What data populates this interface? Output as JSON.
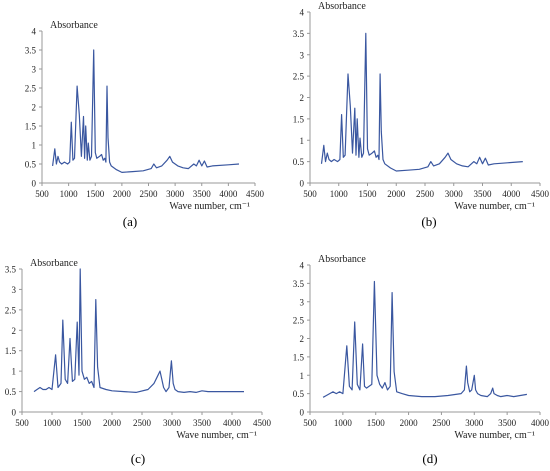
{
  "figure": {
    "line_color": "#3a57a0",
    "axis_color": "#999999"
  },
  "chart_data": [
    {
      "type": "line",
      "caption": "(a)",
      "ylabel": "Absorbance",
      "xlabel": "Wave number, cm⁻¹",
      "xlim": [
        500,
        4500
      ],
      "ylim": [
        0,
        4
      ],
      "xticks": [
        500,
        1000,
        1500,
        2000,
        2500,
        3000,
        3500,
        4000,
        4500
      ],
      "yticks": [
        0,
        0.5,
        1,
        1.5,
        2,
        2.5,
        3,
        3.5,
        4
      ],
      "ytick_labels": [
        "0",
        "0.5",
        "1",
        "1.5",
        "2",
        "2.5",
        "3",
        "3.5",
        "4"
      ],
      "grid": false,
      "series": [
        {
          "x": [
            700,
            740,
            770,
            800,
            830,
            870,
            920,
            980,
            1020,
            1050,
            1080,
            1110,
            1160,
            1200,
            1240,
            1280,
            1300,
            1320,
            1350,
            1370,
            1400,
            1430,
            1470,
            1500,
            1530,
            1580,
            1620,
            1650,
            1680,
            1700,
            1720,
            1740,
            1770,
            1800,
            1900,
            2000,
            2200,
            2400,
            2550,
            2600,
            2650,
            2750,
            2850,
            2900,
            2950,
            3050,
            3150,
            3250,
            3350,
            3400,
            3450,
            3500,
            3550,
            3600,
            3700,
            4000,
            4200
          ],
          "y": [
            0.45,
            0.9,
            0.5,
            0.7,
            0.55,
            0.5,
            0.55,
            0.5,
            0.55,
            1.6,
            0.6,
            0.65,
            2.55,
            1.8,
            0.7,
            1.75,
            0.65,
            1.5,
            0.6,
            1.05,
            0.6,
            0.7,
            3.5,
            0.8,
            0.65,
            0.7,
            0.75,
            0.6,
            0.65,
            0.55,
            2.55,
            1.2,
            0.55,
            0.45,
            0.35,
            0.28,
            0.3,
            0.32,
            0.38,
            0.5,
            0.4,
            0.45,
            0.6,
            0.7,
            0.55,
            0.45,
            0.4,
            0.38,
            0.5,
            0.45,
            0.6,
            0.45,
            0.58,
            0.42,
            0.45,
            0.48,
            0.5
          ]
        }
      ]
    },
    {
      "type": "line",
      "caption": "(b)",
      "ylabel": "Absorbance",
      "xlabel": "Wave number, cm⁻¹",
      "xlim": [
        500,
        4500
      ],
      "ylim": [
        0,
        4
      ],
      "xticks": [
        500,
        1000,
        1500,
        2000,
        2500,
        3000,
        3500,
        4000,
        4500
      ],
      "yticks": [
        0,
        0.5,
        1,
        1.5,
        2,
        2.5,
        3,
        3.5,
        4
      ],
      "ytick_labels": [
        "0",
        "0.5",
        "1",
        "1.5",
        "2",
        "2.5",
        "3",
        "3.5",
        "4"
      ],
      "grid": false,
      "series": [
        {
          "x": [
            700,
            740,
            770,
            800,
            830,
            870,
            920,
            980,
            1020,
            1050,
            1080,
            1110,
            1160,
            1200,
            1240,
            1280,
            1300,
            1320,
            1350,
            1370,
            1400,
            1430,
            1470,
            1500,
            1530,
            1580,
            1620,
            1650,
            1680,
            1700,
            1720,
            1740,
            1770,
            1800,
            1900,
            2000,
            2200,
            2400,
            2550,
            2600,
            2650,
            2750,
            2850,
            2900,
            2950,
            3050,
            3150,
            3250,
            3350,
            3400,
            3450,
            3500,
            3550,
            3600,
            3700,
            4000,
            4200
          ],
          "y": [
            0.45,
            0.88,
            0.5,
            0.7,
            0.55,
            0.5,
            0.55,
            0.5,
            0.55,
            1.6,
            0.6,
            0.65,
            2.55,
            1.8,
            0.7,
            1.75,
            0.65,
            1.5,
            0.6,
            1.05,
            0.6,
            0.7,
            3.5,
            0.8,
            0.65,
            0.7,
            0.75,
            0.6,
            0.65,
            0.55,
            2.55,
            1.2,
            0.55,
            0.45,
            0.35,
            0.28,
            0.3,
            0.32,
            0.38,
            0.5,
            0.4,
            0.45,
            0.6,
            0.7,
            0.55,
            0.45,
            0.4,
            0.38,
            0.5,
            0.45,
            0.6,
            0.45,
            0.58,
            0.42,
            0.45,
            0.48,
            0.5
          ]
        }
      ]
    },
    {
      "type": "line",
      "caption": "(c)",
      "ylabel": "Absorbance",
      "xlabel": "Wave number, cm⁻¹",
      "xlim": [
        500,
        4500
      ],
      "ylim": [
        0,
        3.5
      ],
      "xticks": [
        500,
        1000,
        1500,
        2000,
        2500,
        3000,
        3500,
        4000,
        4500
      ],
      "yticks": [
        0,
        0.5,
        1,
        1.5,
        2,
        2.5,
        3,
        3.5
      ],
      "ytick_labels": [
        "0",
        "0.5",
        "1",
        "1.5",
        "2",
        "2.5",
        "3",
        "3.5"
      ],
      "grid": false,
      "series": [
        {
          "x": [
            700,
            750,
            800,
            850,
            900,
            950,
            1000,
            1060,
            1100,
            1150,
            1180,
            1220,
            1260,
            1300,
            1340,
            1380,
            1420,
            1450,
            1470,
            1500,
            1540,
            1580,
            1620,
            1660,
            1700,
            1730,
            1760,
            1800,
            1900,
            2000,
            2200,
            2400,
            2600,
            2700,
            2750,
            2800,
            2830,
            2860,
            2900,
            2950,
            2990,
            3020,
            3050,
            3100,
            3200,
            3300,
            3400,
            3500,
            3600,
            3700,
            4000,
            4200
          ],
          "y": [
            0.5,
            0.55,
            0.6,
            0.55,
            0.55,
            0.6,
            0.55,
            1.4,
            0.6,
            0.7,
            2.25,
            0.8,
            0.7,
            1.8,
            0.75,
            0.8,
            2.2,
            0.9,
            3.5,
            1.0,
            0.8,
            0.85,
            0.7,
            0.75,
            0.6,
            2.75,
            1.1,
            0.6,
            0.55,
            0.52,
            0.5,
            0.48,
            0.55,
            0.7,
            0.85,
            1.0,
            0.8,
            0.6,
            0.5,
            0.6,
            1.25,
            0.7,
            0.55,
            0.5,
            0.48,
            0.5,
            0.48,
            0.52,
            0.5,
            0.5,
            0.5,
            0.5
          ]
        }
      ]
    },
    {
      "type": "line",
      "caption": "(d)",
      "ylabel": "Absorbance",
      "xlabel": "Wave number, cm⁻¹",
      "xlim": [
        500,
        4000
      ],
      "ylim": [
        0,
        4
      ],
      "xticks": [
        500,
        1000,
        1500,
        2000,
        2500,
        3000,
        3500,
        4000
      ],
      "yticks": [
        0,
        0.5,
        1,
        1.5,
        2,
        2.5,
        3,
        3.5,
        4
      ],
      "ytick_labels": [
        "0",
        "0.5",
        "1",
        "1.5",
        "2",
        "2.5",
        "3",
        "3.5",
        "4"
      ],
      "grid": false,
      "series": [
        {
          "x": [
            700,
            750,
            800,
            850,
            900,
            950,
            1000,
            1060,
            1100,
            1140,
            1180,
            1220,
            1260,
            1300,
            1330,
            1360,
            1400,
            1440,
            1480,
            1520,
            1560,
            1600,
            1640,
            1680,
            1720,
            1750,
            1780,
            1820,
            1900,
            2000,
            2200,
            2400,
            2600,
            2800,
            2850,
            2880,
            2900,
            2930,
            2960,
            3000,
            3020,
            3050,
            3100,
            3200,
            3250,
            3280,
            3300,
            3350,
            3400,
            3500,
            3600,
            3700,
            3800
          ],
          "y": [
            0.4,
            0.45,
            0.5,
            0.55,
            0.5,
            0.55,
            0.5,
            1.8,
            0.7,
            0.6,
            2.45,
            0.75,
            0.6,
            1.85,
            0.7,
            0.65,
            0.7,
            0.75,
            3.55,
            1.0,
            0.75,
            0.65,
            0.8,
            0.6,
            0.7,
            3.25,
            1.1,
            0.55,
            0.5,
            0.45,
            0.42,
            0.42,
            0.45,
            0.5,
            0.6,
            1.25,
            0.8,
            0.55,
            0.6,
            1.0,
            0.6,
            0.5,
            0.45,
            0.42,
            0.5,
            0.65,
            0.5,
            0.45,
            0.42,
            0.45,
            0.42,
            0.45,
            0.48
          ]
        }
      ]
    }
  ]
}
